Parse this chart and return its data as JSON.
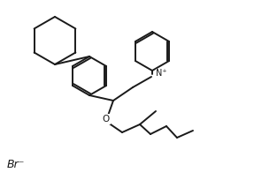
{
  "bg_color": "#ffffff",
  "line_color": "#1a1a1a",
  "bond_width": 1.4,
  "figsize": [
    2.87,
    2.04
  ],
  "dpi": 100,
  "br_label": "Br⁻",
  "n_plus_label": "N⁺",
  "o_label": "O",
  "xlim": [
    0,
    2.87
  ],
  "ylim": [
    0,
    2.04
  ]
}
